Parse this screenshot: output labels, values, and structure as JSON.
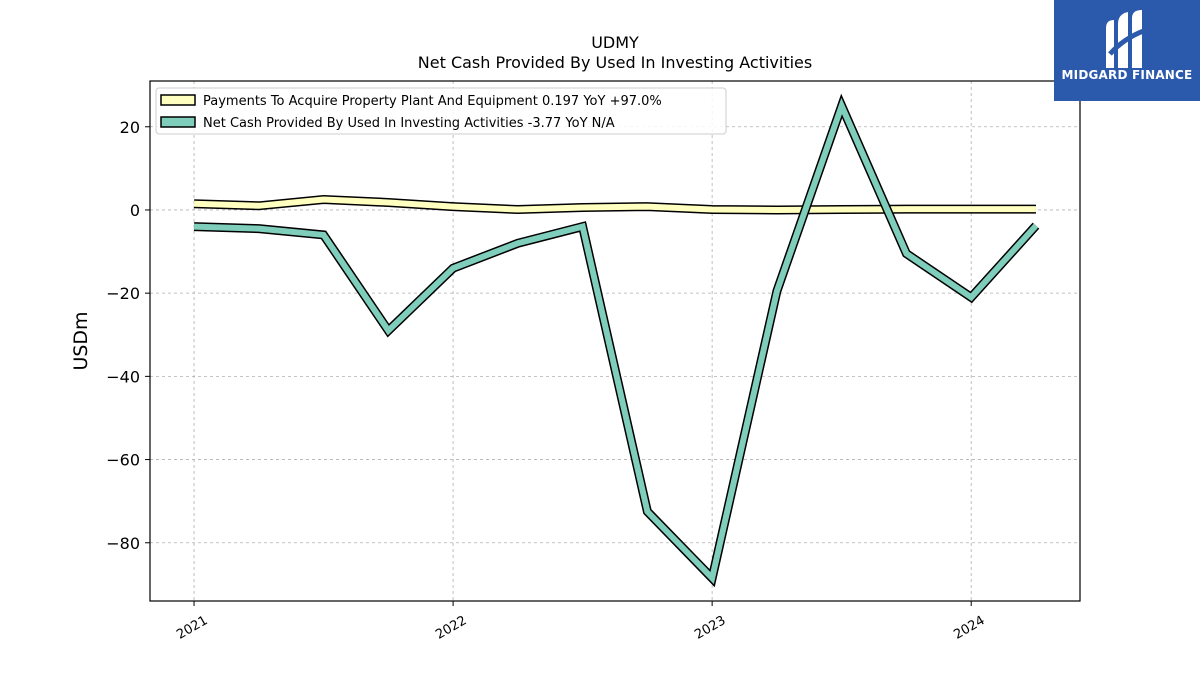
{
  "chart_data": {
    "type": "line",
    "title": "UDMY",
    "subtitle": "Net Cash Provided By Used In Investing Activities",
    "ylabel": "USDm",
    "xlabel": "",
    "ylim": [
      -94,
      31
    ],
    "xlim": [
      2020.83,
      2024.42
    ],
    "grid": true,
    "legend_position": "top-left",
    "x_ticks": [
      2021,
      2022,
      2023,
      2024
    ],
    "x_tick_labels": [
      "2021",
      "2022",
      "2023",
      "2024"
    ],
    "y_ticks": [
      20,
      0,
      -20,
      -40,
      -60,
      -80
    ],
    "y_tick_labels": [
      "20",
      "0",
      "−20",
      "−40",
      "−60",
      "−80"
    ],
    "x": [
      2021.0,
      2021.25,
      2021.5,
      2021.75,
      2022.0,
      2022.25,
      2022.5,
      2022.75,
      2023.0,
      2023.25,
      2023.5,
      2023.75,
      2024.0,
      2024.25
    ],
    "series": [
      {
        "name": "Payments To Acquire Property Plant And Equipment",
        "legend_label": "Payments To Acquire Property Plant And Equipment  0.197 YoY +97.0%",
        "color": "#ffffbf",
        "values": [
          1.5,
          1.0,
          2.5,
          1.8,
          0.8,
          0.1,
          0.6,
          0.8,
          0.1,
          0.0,
          0.1,
          0.2,
          0.2,
          0.2
        ]
      },
      {
        "name": "Net Cash Provided By Used In Investing Activities",
        "legend_label": "Net Cash Provided By Used In Investing Activities  -3.77 YoY N/A",
        "color": "#7fcdbb",
        "values": [
          -4.0,
          -4.5,
          -6.0,
          -29.0,
          -14.0,
          -8.0,
          -4.0,
          -72.5,
          -88.5,
          -19.5,
          25.0,
          -10.5,
          -21.0,
          -3.77
        ]
      }
    ]
  },
  "logo": {
    "text": "MIDGARD FINANCE",
    "background": "#2b5aad"
  }
}
